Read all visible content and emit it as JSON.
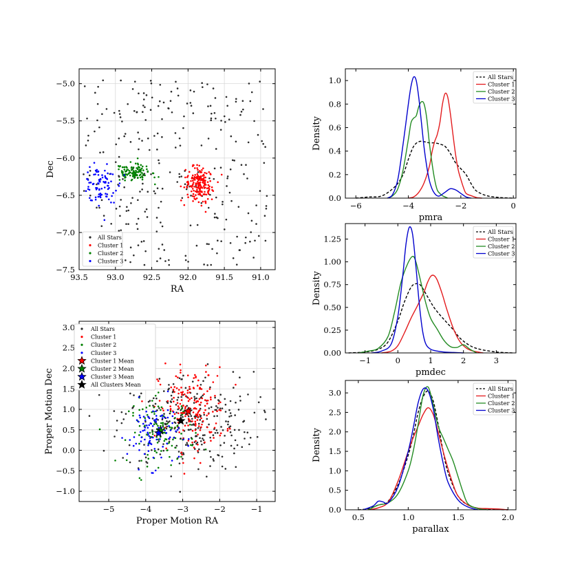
{
  "figure": {
    "background": "#ffffff"
  },
  "colors": {
    "all": "#2b2b2b",
    "cluster1": "#ff0000",
    "cluster2": "#008000",
    "cluster3": "#0000ff",
    "grid": "#d8d8d8",
    "density_all": "#000000",
    "density_c1": "#e31a1c",
    "density_c2": "#228b22",
    "density_c3": "#0000cd"
  },
  "chart_data": [
    {
      "id": "sky",
      "type": "scatter",
      "title": "",
      "xlabel": "RA",
      "ylabel": "Dec",
      "xlim": [
        93.5,
        90.8
      ],
      "ylim": [
        -7.5,
        -4.8
      ],
      "xticks": [
        93.5,
        93.0,
        92.5,
        92.0,
        91.5,
        91.0
      ],
      "xtick_labels": [
        "93.5",
        "93.0",
        "92.5",
        "92.0",
        "91.5",
        "91.0"
      ],
      "yticks": [
        -7.5,
        -7.0,
        -6.5,
        -6.0,
        -5.5,
        -5.0
      ],
      "ytick_labels": [
        "−7.5",
        "−7.0",
        "−6.5",
        "−6.0",
        "−5.5",
        "−5.0"
      ],
      "grid": true,
      "legend": {
        "position": "lower-left",
        "entries": [
          "All Stars",
          "Cluster 1",
          "Cluster 2",
          "Cluster 3"
        ]
      },
      "series": [
        {
          "name": "All Stars",
          "color": "#2b2b2b",
          "n": 300,
          "x_range": [
            90.9,
            93.45
          ],
          "y_range": [
            -7.45,
            -4.95
          ],
          "sample": [
            [
              92.2,
              -6.3
            ],
            [
              91.4,
              -5.3
            ],
            [
              92.9,
              -6.8
            ],
            [
              91.2,
              -7.1
            ]
          ]
        },
        {
          "name": "Cluster 1",
          "color": "#ff0000",
          "n": 190,
          "x_center": 91.85,
          "y_center": -6.35,
          "x_sd": 0.09,
          "y_sd": 0.11
        },
        {
          "name": "Cluster 2",
          "color": "#008000",
          "n": 110,
          "x_center": 92.75,
          "y_center": -6.2,
          "x_sd": 0.13,
          "y_sd": 0.06
        },
        {
          "name": "Cluster 3",
          "color": "#0000ff",
          "n": 90,
          "x_center": 93.22,
          "y_center": -6.35,
          "x_sd": 0.12,
          "y_sd": 0.12
        }
      ]
    },
    {
      "id": "pm",
      "type": "scatter",
      "title": "",
      "xlabel": "Proper Motion RA",
      "ylabel": "Proper Motion Dec",
      "xlim": [
        -5.8,
        -0.5
      ],
      "ylim": [
        -1.25,
        3.15
      ],
      "xticks": [
        -5,
        -4,
        -3,
        -2,
        -1
      ],
      "xtick_labels": [
        "−5",
        "−4",
        "−3",
        "−2",
        "−1"
      ],
      "yticks": [
        -1.0,
        -0.5,
        0.0,
        0.5,
        1.0,
        1.5,
        2.0,
        2.5,
        3.0
      ],
      "ytick_labels": [
        "−1.0",
        "−0.5",
        "0.0",
        "0.5",
        "1.0",
        "1.5",
        "2.0",
        "2.5",
        "3.0"
      ],
      "grid": true,
      "legend": {
        "position": "upper-left",
        "entries": [
          "All Stars",
          "Cluster 1",
          "Cluster 2",
          "Cluster 3",
          "Cluster 1 Mean",
          "Cluster 2 Mean",
          "Cluster 3 Mean",
          "All Clusters Mean"
        ]
      },
      "series": [
        {
          "name": "All Stars",
          "color": "#2b2b2b",
          "n": 300,
          "x_center": -2.9,
          "y_center": 0.7,
          "x_sd": 0.9,
          "y_sd": 0.6
        },
        {
          "name": "Cluster 1",
          "color": "#ff0000",
          "n": 190,
          "x_center": -2.75,
          "y_center": 1.0,
          "x_sd": 0.45,
          "y_sd": 0.5
        },
        {
          "name": "Cluster 2",
          "color": "#008000",
          "n": 110,
          "x_center": -3.55,
          "y_center": 0.45,
          "x_sd": 0.45,
          "y_sd": 0.4
        },
        {
          "name": "Cluster 3",
          "color": "#0000ff",
          "n": 90,
          "x_center": -3.8,
          "y_center": 0.4,
          "x_sd": 0.35,
          "y_sd": 0.4
        }
      ],
      "means": [
        {
          "name": "Cluster 1 Mean",
          "x": -2.85,
          "y": 0.95,
          "color": "#ff0000"
        },
        {
          "name": "Cluster 2 Mean",
          "x": -3.6,
          "y": 0.48,
          "color": "#008000"
        },
        {
          "name": "Cluster 3 Mean",
          "x": -3.65,
          "y": 0.42,
          "color": "#0000ff"
        },
        {
          "name": "All Clusters Mean",
          "x": -3.05,
          "y": 0.72,
          "color": "#000000"
        }
      ]
    },
    {
      "id": "pmra",
      "type": "line",
      "xlabel": "pmra",
      "ylabel": "Density",
      "xlim": [
        -6.4,
        0.1
      ],
      "ylim": [
        0,
        1.1
      ],
      "xticks": [
        -6,
        -4,
        -2,
        0
      ],
      "xtick_labels": [
        "−6",
        "−4",
        "−2",
        "0"
      ],
      "yticks": [
        0,
        0.2,
        0.4,
        0.6,
        0.8,
        1.0
      ],
      "ytick_labels": [
        "0.0",
        "0.2",
        "0.4",
        "0.6",
        "0.8",
        "1.0"
      ],
      "legend": {
        "position": "top-right",
        "entries": [
          "All Stars",
          "Cluster 1",
          "Cluster 2",
          "Cluster 3"
        ]
      },
      "series": [
        {
          "name": "All Stars",
          "color": "#000000",
          "dashed": true,
          "x": [
            -6.0,
            -5.5,
            -5.0,
            -4.5,
            -4.2,
            -4.0,
            -3.8,
            -3.6,
            -3.4,
            -3.2,
            -3.0,
            -2.8,
            -2.6,
            -2.4,
            -2.2,
            -2.0,
            -1.8,
            -1.6,
            -1.4,
            -1.0,
            -0.5,
            0
          ],
          "y": [
            0,
            0.01,
            0.02,
            0.1,
            0.2,
            0.33,
            0.44,
            0.48,
            0.48,
            0.47,
            0.47,
            0.46,
            0.44,
            0.38,
            0.3,
            0.25,
            0.2,
            0.12,
            0.06,
            0.02,
            0.005,
            0
          ]
        },
        {
          "name": "Cluster 1",
          "color": "#e31a1c",
          "x": [
            -4.0,
            -3.8,
            -3.6,
            -3.4,
            -3.2,
            -3.1,
            -3.0,
            -2.9,
            -2.8,
            -2.7,
            -2.6,
            -2.5,
            -2.4,
            -2.3,
            -2.2,
            -2.1,
            -2.0,
            -1.9,
            -1.8,
            -1.6,
            -1.4,
            -1.2
          ],
          "y": [
            0,
            0.01,
            0.05,
            0.13,
            0.27,
            0.39,
            0.48,
            0.54,
            0.64,
            0.8,
            0.89,
            0.86,
            0.72,
            0.54,
            0.37,
            0.24,
            0.16,
            0.09,
            0.04,
            0.02,
            0.005,
            0
          ]
        },
        {
          "name": "Cluster 2",
          "color": "#228b22",
          "x": [
            -4.8,
            -4.6,
            -4.4,
            -4.2,
            -4.0,
            -3.9,
            -3.8,
            -3.7,
            -3.6,
            -3.5,
            -3.4,
            -3.3,
            -3.2,
            -3.1,
            -3.0,
            -2.9,
            -2.8,
            -2.7,
            -2.6,
            -2.5
          ],
          "y": [
            0,
            0.02,
            0.08,
            0.24,
            0.5,
            0.64,
            0.68,
            0.7,
            0.78,
            0.82,
            0.8,
            0.68,
            0.47,
            0.3,
            0.16,
            0.07,
            0.04,
            0.02,
            0.01,
            0
          ]
        },
        {
          "name": "Cluster 3",
          "color": "#0000cd",
          "x": [
            -4.8,
            -4.6,
            -4.4,
            -4.2,
            -4.0,
            -3.9,
            -3.8,
            -3.7,
            -3.6,
            -3.5,
            -3.4,
            -3.3,
            -3.2,
            -3.1,
            -3.0,
            -2.9,
            -2.8,
            -2.6,
            -2.4,
            -2.2,
            -2.0,
            -1.8,
            -1.6
          ],
          "y": [
            0,
            0.03,
            0.16,
            0.46,
            0.8,
            0.95,
            1.03,
            1.0,
            0.85,
            0.64,
            0.43,
            0.27,
            0.15,
            0.08,
            0.04,
            0.02,
            0.02,
            0.05,
            0.08,
            0.07,
            0.04,
            0.01,
            0
          ]
        }
      ]
    },
    {
      "id": "pmdec",
      "type": "line",
      "xlabel": "pmdec",
      "ylabel": "Density",
      "xlim": [
        -1.6,
        3.6
      ],
      "ylim": [
        0,
        1.42
      ],
      "xticks": [
        -1,
        0,
        1,
        2,
        3
      ],
      "xtick_labels": [
        "−1",
        "0",
        "1",
        "2",
        "3"
      ],
      "yticks": [
        0,
        0.25,
        0.5,
        0.75,
        1.0,
        1.25
      ],
      "ytick_labels": [
        "0.00",
        "0.25",
        "0.50",
        "0.75",
        "1.00",
        "1.25"
      ],
      "legend": {
        "position": "top-right",
        "entries": [
          "All Stars",
          "Cluster 1",
          "Cluster 2",
          "Cluster 3"
        ]
      },
      "series": [
        {
          "name": "All Stars",
          "color": "#000000",
          "dashed": true,
          "x": [
            -1.5,
            -1.0,
            -0.6,
            -0.3,
            0,
            0.2,
            0.4,
            0.55,
            0.7,
            0.9,
            1.1,
            1.3,
            1.5,
            1.7,
            1.9,
            2.2,
            2.5,
            3.0,
            3.5
          ],
          "y": [
            0,
            0.01,
            0.04,
            0.12,
            0.35,
            0.56,
            0.72,
            0.76,
            0.74,
            0.62,
            0.5,
            0.41,
            0.33,
            0.25,
            0.16,
            0.08,
            0.04,
            0.01,
            0
          ]
        },
        {
          "name": "Cluster 1",
          "color": "#e31a1c",
          "x": [
            -0.5,
            -0.2,
            0,
            0.2,
            0.4,
            0.6,
            0.8,
            0.9,
            1.0,
            1.1,
            1.2,
            1.35,
            1.5,
            1.7,
            1.9,
            2.1,
            2.3,
            2.6
          ],
          "y": [
            0,
            0.02,
            0.08,
            0.22,
            0.38,
            0.52,
            0.67,
            0.77,
            0.84,
            0.85,
            0.8,
            0.65,
            0.47,
            0.26,
            0.12,
            0.05,
            0.02,
            0
          ]
        },
        {
          "name": "Cluster 2",
          "color": "#228b22",
          "x": [
            -1.2,
            -0.9,
            -0.6,
            -0.3,
            -0.1,
            0.1,
            0.3,
            0.45,
            0.55,
            0.7,
            0.85,
            1.0,
            1.2,
            1.4,
            1.6,
            1.8,
            2.0,
            2.2,
            2.4
          ],
          "y": [
            0,
            0.02,
            0.05,
            0.18,
            0.45,
            0.78,
            0.98,
            1.06,
            1.0,
            0.78,
            0.55,
            0.38,
            0.26,
            0.14,
            0.07,
            0.06,
            0.09,
            0.04,
            0
          ]
        },
        {
          "name": "Cluster 3",
          "color": "#0000cd",
          "x": [
            -0.8,
            -0.5,
            -0.2,
            0,
            0.15,
            0.25,
            0.35,
            0.45,
            0.55,
            0.65,
            0.75,
            0.85,
            1.0,
            1.2,
            1.4,
            1.7,
            2.0
          ],
          "y": [
            0,
            0.02,
            0.1,
            0.4,
            0.85,
            1.2,
            1.38,
            1.3,
            0.95,
            0.55,
            0.25,
            0.1,
            0.04,
            0.02,
            0.01,
            0.005,
            0
          ]
        }
      ]
    },
    {
      "id": "parallax",
      "type": "line",
      "xlabel": "parallax",
      "ylabel": "Density",
      "xlim": [
        0.37,
        2.08
      ],
      "ylim": [
        0,
        3.32
      ],
      "xticks": [
        0.5,
        1.0,
        1.5,
        2.0
      ],
      "xtick_labels": [
        "0.5",
        "1.0",
        "1.5",
        "2.0"
      ],
      "yticks": [
        0,
        0.5,
        1.0,
        1.5,
        2.0,
        2.5,
        3.0
      ],
      "ytick_labels": [
        "0.0",
        "0.5",
        "1.0",
        "1.5",
        "2.0",
        "2.5",
        "3.0"
      ],
      "legend": {
        "position": "top-right",
        "entries": [
          "All Stars",
          "Cluster 1",
          "Cluster 2",
          "Cluster 3"
        ]
      },
      "series": [
        {
          "name": "All Stars",
          "color": "#000000",
          "dashed": true,
          "x": [
            0.5,
            0.6,
            0.7,
            0.75,
            0.8,
            0.9,
            1.0,
            1.05,
            1.1,
            1.15,
            1.2,
            1.25,
            1.3,
            1.35,
            1.4,
            1.5,
            1.6,
            1.7,
            1.8,
            2.0
          ],
          "y": [
            0,
            0.03,
            0.12,
            0.15,
            0.22,
            0.65,
            1.4,
            1.9,
            2.5,
            2.9,
            3.05,
            2.8,
            2.2,
            1.5,
            0.95,
            0.35,
            0.12,
            0.04,
            0.01,
            0
          ]
        },
        {
          "name": "Cluster 1",
          "color": "#e31a1c",
          "x": [
            0.6,
            0.7,
            0.8,
            0.9,
            1.0,
            1.05,
            1.1,
            1.15,
            1.2,
            1.25,
            1.3,
            1.35,
            1.4,
            1.45,
            1.5,
            1.6,
            1.7,
            1.8,
            1.9,
            2.0
          ],
          "y": [
            0,
            0.05,
            0.2,
            0.75,
            1.5,
            1.85,
            2.15,
            2.45,
            2.62,
            2.45,
            2.0,
            1.5,
            1.05,
            0.65,
            0.35,
            0.12,
            0.04,
            0.03,
            0.02,
            0
          ]
        },
        {
          "name": "Cluster 2",
          "color": "#228b22",
          "x": [
            0.6,
            0.7,
            0.8,
            0.9,
            1.0,
            1.05,
            1.1,
            1.15,
            1.2,
            1.25,
            1.3,
            1.35,
            1.4,
            1.45,
            1.5,
            1.55,
            1.6,
            1.7,
            1.8
          ],
          "y": [
            0,
            0.12,
            0.18,
            0.42,
            1.0,
            1.5,
            2.2,
            2.95,
            3.15,
            2.7,
            2.15,
            1.85,
            1.55,
            1.25,
            0.85,
            0.45,
            0.15,
            0.03,
            0
          ]
        },
        {
          "name": "Cluster 3",
          "color": "#0000cd",
          "x": [
            0.55,
            0.65,
            0.7,
            0.75,
            0.8,
            0.9,
            1.0,
            1.05,
            1.1,
            1.15,
            1.2,
            1.25,
            1.3,
            1.35,
            1.4,
            1.5,
            1.6,
            1.7
          ],
          "y": [
            0,
            0.1,
            0.22,
            0.2,
            0.18,
            0.6,
            1.5,
            2.1,
            2.75,
            3.1,
            3.05,
            2.6,
            1.85,
            1.2,
            0.7,
            0.25,
            0.07,
            0
          ]
        }
      ]
    }
  ]
}
